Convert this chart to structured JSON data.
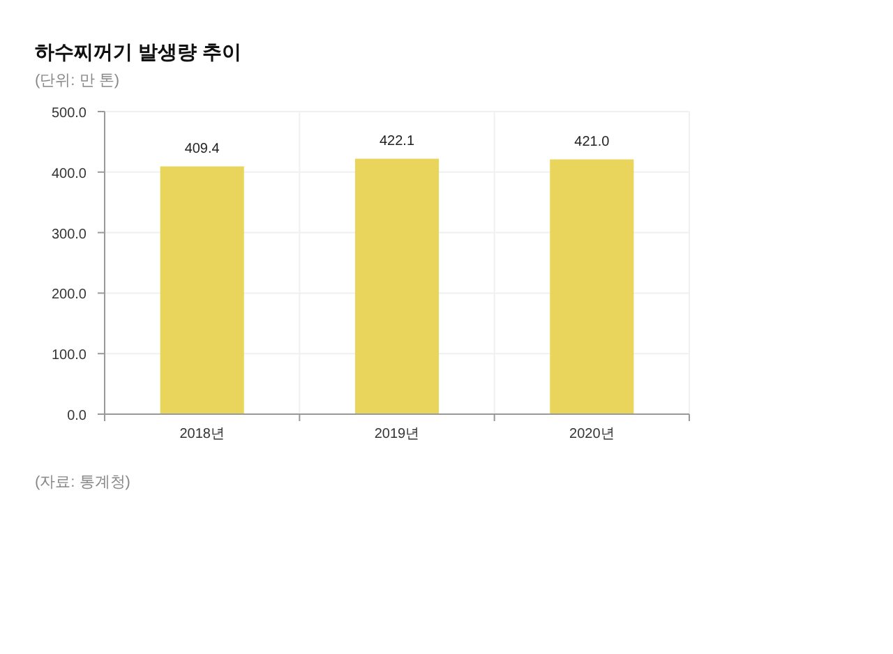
{
  "chart_data": {
    "type": "bar",
    "title": "하수찌꺼기 발생량 추이",
    "subtitle": "(단위: 만 톤)",
    "categories": [
      "2018년",
      "2019년",
      "2020년"
    ],
    "values": [
      409.4,
      422.1,
      421.0
    ],
    "value_labels": [
      "409.4",
      "422.1",
      "421.0"
    ],
    "color": "#e9d55b",
    "ylim": [
      0,
      500
    ],
    "yticks": [
      {
        "value": 0,
        "label": "0.0"
      },
      {
        "value": 100,
        "label": "100.0"
      },
      {
        "value": 200,
        "label": "200.0"
      },
      {
        "value": 300,
        "label": "300.0"
      },
      {
        "value": 400,
        "label": "400.0"
      },
      {
        "value": 500,
        "label": "500.0"
      }
    ],
    "grid": true,
    "annotations": [
      "(자료: 통계청)"
    ]
  }
}
